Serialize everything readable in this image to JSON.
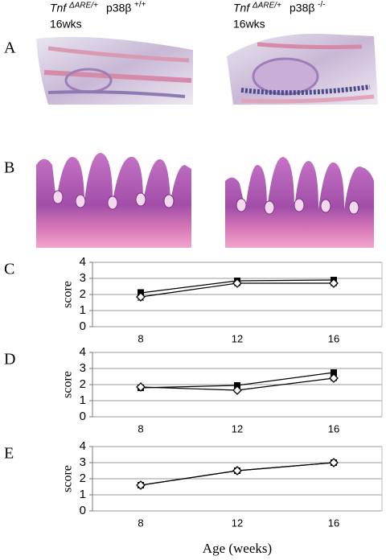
{
  "header": {
    "left": {
      "gene": "Tnf",
      "gene_sup": "ΔARE/+",
      "kinase": "p38β",
      "kinase_sup": "+/+",
      "age": "16wks"
    },
    "right": {
      "gene": "Tnf",
      "gene_sup": "ΔARE/+",
      "kinase": "p38β",
      "kinase_sup": "-/-",
      "age": "16wks"
    }
  },
  "panel_labels": [
    "A",
    "B",
    "C",
    "D",
    "E"
  ],
  "chart_data": [
    {
      "type": "line",
      "categories": [
        "8",
        "12",
        "16"
      ],
      "ylabel": "score",
      "ylim": [
        0,
        4
      ],
      "yticks": [
        0,
        1,
        2,
        3,
        4
      ],
      "grid": true,
      "series": [
        {
          "color": "#000000",
          "marker": "square",
          "values": [
            2.1,
            2.85,
            2.9
          ],
          "errors": [
            0.2,
            0.15,
            0.1
          ]
        },
        {
          "color": "#000000",
          "marker": "diamond",
          "values": [
            1.85,
            2.7,
            2.7
          ],
          "errors": [
            0.2,
            0.15,
            0.15
          ]
        }
      ]
    },
    {
      "type": "line",
      "categories": [
        "8",
        "12",
        "16"
      ],
      "ylabel": "score",
      "ylim": [
        0,
        4
      ],
      "yticks": [
        0,
        1,
        2,
        3,
        4
      ],
      "grid": true,
      "series": [
        {
          "color": "#000000",
          "marker": "square",
          "values": [
            1.8,
            1.95,
            2.75
          ],
          "errors": [
            0.1,
            0.15,
            0.1
          ]
        },
        {
          "color": "#000000",
          "marker": "diamond",
          "values": [
            1.85,
            1.65,
            2.4
          ],
          "errors": [
            0.1,
            0.1,
            0.15
          ]
        }
      ]
    },
    {
      "type": "line",
      "categories": [
        "8",
        "12",
        "16"
      ],
      "ylabel": "score",
      "xlabel": "Age (weeks)",
      "ylim": [
        0,
        4
      ],
      "yticks": [
        0,
        1,
        2,
        3,
        4
      ],
      "grid": true,
      "series": [
        {
          "color": "#000000",
          "marker": "square",
          "values": [
            1.6,
            2.5,
            3.0
          ],
          "errors": [
            0.1,
            0.1,
            0.05
          ]
        },
        {
          "color": "#000000",
          "marker": "diamond",
          "values": [
            1.6,
            2.5,
            3.0
          ],
          "errors": [
            0.1,
            0.1,
            0.05
          ]
        }
      ]
    }
  ]
}
